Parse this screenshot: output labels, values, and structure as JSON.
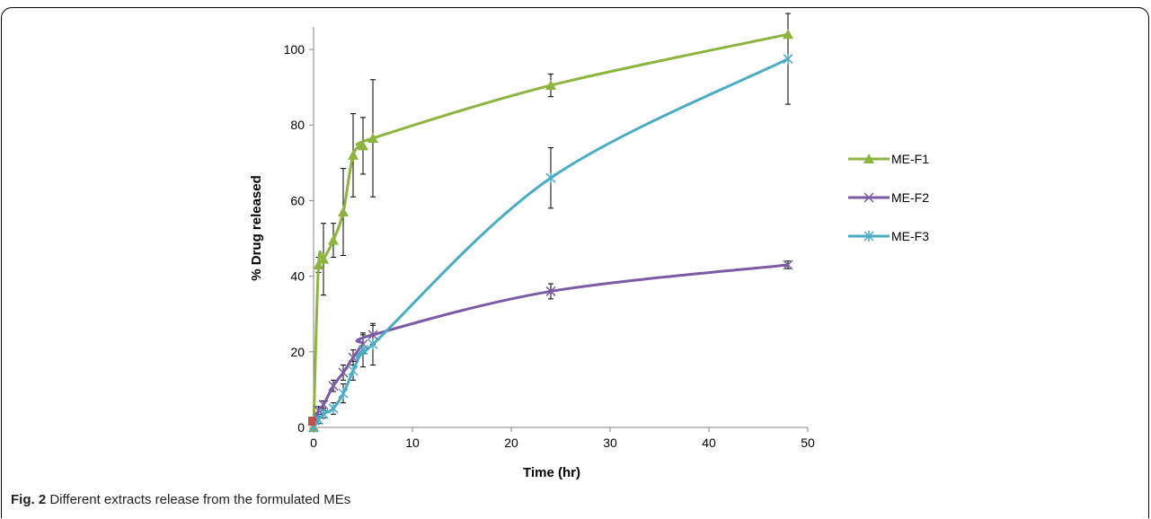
{
  "caption": {
    "label": "Fig. 2",
    "text": "Different extracts release from the formulated MEs"
  },
  "chart_data": {
    "type": "line",
    "xlabel": "Time (hr)",
    "ylabel": "% Drug released",
    "xlim": [
      0,
      50
    ],
    "ylim": [
      0,
      105
    ],
    "xticks": [
      0,
      10,
      20,
      30,
      40,
      50
    ],
    "yticks": [
      0,
      20,
      40,
      60,
      80,
      100
    ],
    "grid": false,
    "legend_position": "right",
    "series": [
      {
        "name": "ME-F1",
        "color": "#8db43f",
        "marker": "triangle",
        "x": [
          0,
          0.5,
          1,
          2,
          3,
          4,
          5,
          6,
          24,
          48
        ],
        "y": [
          0,
          43,
          44.5,
          49.5,
          57,
          72,
          74.5,
          76.5,
          90.5,
          104
        ],
        "err": [
          0,
          2,
          9.5,
          4.5,
          11.5,
          11,
          7.5,
          15.5,
          3,
          0
        ]
      },
      {
        "name": "ME-F2",
        "color": "#7b5aa6",
        "marker": "x",
        "x": [
          0,
          0.5,
          1,
          2,
          3,
          4,
          5,
          6,
          24,
          48
        ],
        "y": [
          0,
          4.5,
          6,
          11,
          14.5,
          18.5,
          22,
          24.5,
          36,
          43
        ],
        "err": [
          0,
          1,
          1,
          1.5,
          2,
          2,
          2.5,
          2.5,
          2,
          1
        ]
      },
      {
        "name": "ME-F3",
        "color": "#4aacc5",
        "marker": "asterisk",
        "x": [
          0,
          0.5,
          1,
          2,
          3,
          4,
          5,
          6,
          24,
          48
        ],
        "y": [
          0,
          2,
          3.5,
          5,
          9,
          15,
          20.5,
          22,
          66,
          97.5
        ],
        "err": [
          0,
          1,
          1,
          1.5,
          2.5,
          2.5,
          4.5,
          5.5,
          8,
          12
        ]
      }
    ]
  }
}
